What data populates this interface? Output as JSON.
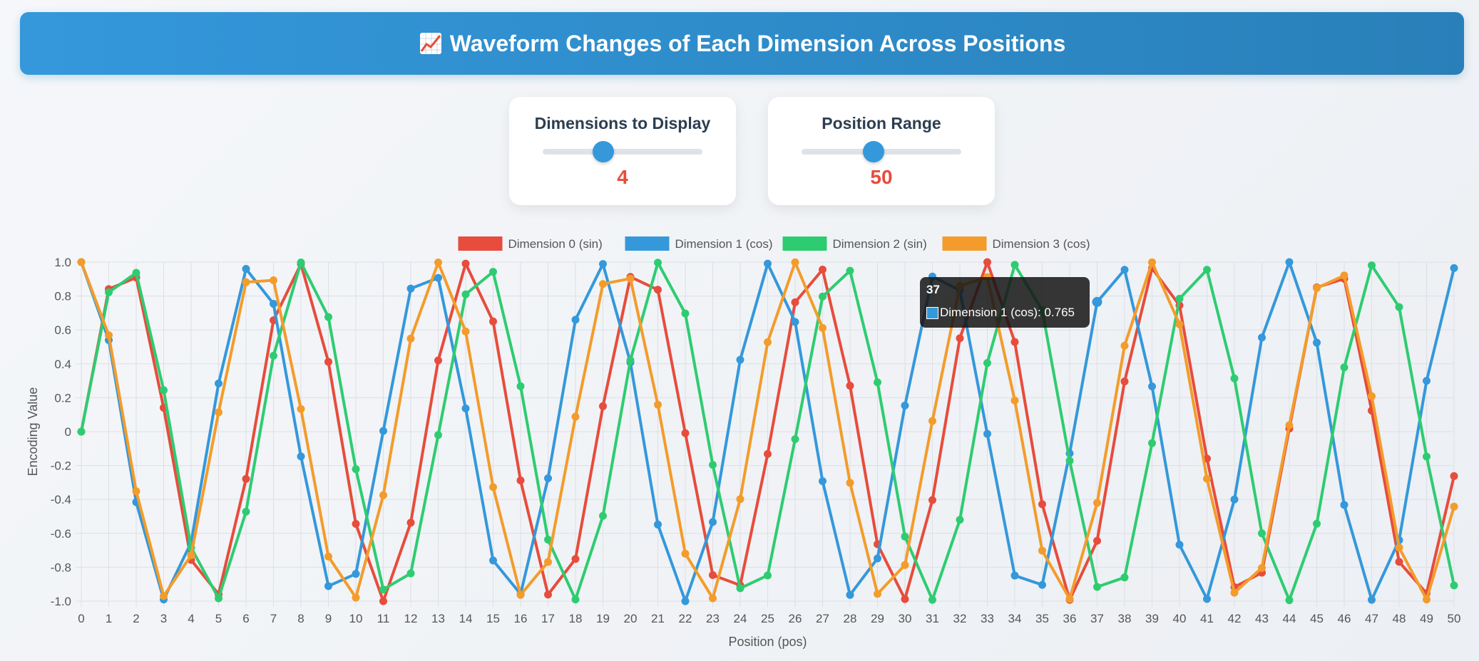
{
  "header": {
    "title": "Waveform Changes of Each Dimension Across Positions",
    "icon": "chart-increasing-icon"
  },
  "controls": {
    "dimensions": {
      "label": "Dimensions to Display",
      "value": "4",
      "min": 1,
      "max": 8
    },
    "positions": {
      "label": "Position Range",
      "value": "50",
      "min": 10,
      "max": 90
    }
  },
  "tooltip": {
    "title": "37",
    "text": "Dimension 1 (cos): 0.765"
  },
  "chart_data": {
    "type": "line",
    "xlabel": "Position (pos)",
    "ylabel": "Encoding Value",
    "xlim": [
      0,
      50
    ],
    "ylim": [
      -1,
      1
    ],
    "yticks": [
      "1.0",
      "0.8",
      "0.6",
      "0.4",
      "0.2",
      "0",
      "-0.2",
      "-0.4",
      "-0.6",
      "-0.8",
      "-1.0"
    ],
    "xticks": [
      "0",
      "1",
      "2",
      "3",
      "4",
      "5",
      "6",
      "7",
      "8",
      "9",
      "10",
      "11",
      "12",
      "13",
      "14",
      "15",
      "16",
      "17",
      "18",
      "19",
      "20",
      "21",
      "22",
      "23",
      "24",
      "25",
      "26",
      "27",
      "28",
      "29",
      "30",
      "31",
      "32",
      "33",
      "34",
      "35",
      "36",
      "37",
      "38",
      "39",
      "40",
      "41",
      "42",
      "43",
      "44",
      "45",
      "46",
      "47",
      "48",
      "49",
      "50"
    ],
    "grid": true,
    "legend": "top-center",
    "series": [
      {
        "name": "Dimension 0 (sin)",
        "color": "#e74c3c",
        "values": [
          0,
          0.841,
          0.909,
          0.141,
          -0.757,
          -0.959,
          -0.279,
          0.657,
          0.989,
          0.412,
          -0.544,
          -1.0,
          -0.537,
          0.42,
          0.991,
          0.65,
          -0.288,
          -0.961,
          -0.751,
          0.15,
          0.913,
          0.837,
          -0.009,
          -0.846,
          -0.906,
          -0.132,
          0.763,
          0.956,
          0.271,
          -0.664,
          -0.988,
          -0.404,
          0.551,
          1.0,
          0.529,
          -0.428,
          -0.992,
          -0.644,
          0.296,
          0.964,
          0.745,
          -0.159,
          -0.917,
          -0.832,
          0.018,
          0.851,
          0.902,
          0.124,
          -0.768,
          -0.954,
          -0.262
        ]
      },
      {
        "name": "Dimension 1 (cos)",
        "color": "#3498db",
        "values": [
          1,
          0.54,
          -0.416,
          -0.99,
          -0.654,
          0.284,
          0.96,
          0.754,
          -0.146,
          -0.911,
          -0.839,
          0.004,
          0.844,
          0.907,
          0.137,
          -0.76,
          -0.958,
          -0.275,
          0.66,
          0.989,
          0.408,
          -0.548,
          -1.0,
          -0.533,
          0.424,
          0.991,
          0.647,
          -0.292,
          -0.963,
          -0.748,
          0.154,
          0.915,
          0.834,
          -0.013,
          -0.849,
          -0.904,
          -0.128,
          0.765,
          0.955,
          0.267,
          -0.667,
          -0.987,
          -0.4,
          0.555,
          1.0,
          0.525,
          -0.432,
          -0.992,
          -0.64,
          0.3,
          0.965
        ]
      },
      {
        "name": "Dimension 2 (sin)",
        "color": "#2ecc71",
        "values": [
          0,
          0.822,
          0.937,
          0.245,
          -0.684,
          -0.983,
          -0.472,
          0.448,
          0.998,
          0.676,
          -0.221,
          -0.931,
          -0.836,
          -0.02,
          0.81,
          0.943,
          0.268,
          -0.637,
          -0.99,
          -0.497,
          0.421,
          0.997,
          0.697,
          -0.196,
          -0.924,
          -0.848,
          -0.044,
          0.797,
          0.949,
          0.291,
          -0.619,
          -0.992,
          -0.52,
          0.405,
          0.984,
          0.717,
          -0.172,
          -0.916,
          -0.86,
          -0.068,
          0.784,
          0.955,
          0.314,
          -0.6,
          -0.994,
          -0.543,
          0.379,
          0.981,
          0.735,
          -0.147,
          -0.907
        ]
      },
      {
        "name": "Dimension 3 (cos)",
        "color": "#f39c2b",
        "values": [
          1,
          0.569,
          -0.352,
          -0.97,
          -0.729,
          0.114,
          0.882,
          0.893,
          0.134,
          -0.737,
          -0.979,
          -0.375,
          0.549,
          0.998,
          0.591,
          -0.327,
          -0.963,
          -0.769,
          0.088,
          0.871,
          0.903,
          0.159,
          -0.72,
          -0.983,
          -0.398,
          0.528,
          0.999,
          0.612,
          -0.302,
          -0.957,
          -0.787,
          0.063,
          0.859,
          0.912,
          0.184,
          -0.702,
          -0.987,
          -0.42,
          0.507,
          0.999,
          0.633,
          -0.278,
          -0.95,
          -0.804,
          0.038,
          0.847,
          0.921,
          0.209,
          -0.684,
          -0.99,
          -0.442
        ]
      }
    ]
  }
}
